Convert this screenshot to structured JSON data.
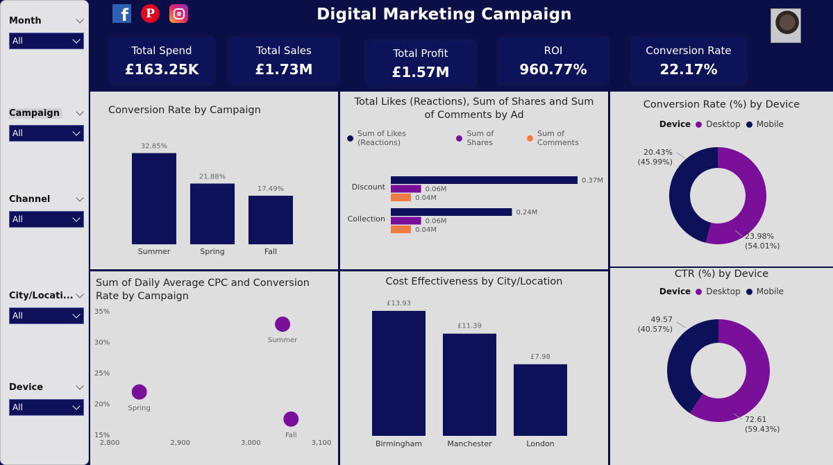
{
  "header": {
    "title": "Digital Marketing Campaign",
    "social": [
      {
        "name": "facebook-icon",
        "glyph": "f"
      },
      {
        "name": "pinterest-icon",
        "glyph": "P"
      },
      {
        "name": "instagram-icon",
        "glyph": ""
      }
    ]
  },
  "kpis": [
    {
      "label": "Total Spend",
      "value": "£163.25K"
    },
    {
      "label": "Total Sales",
      "value": "£1.73M"
    },
    {
      "label": "Total Profit",
      "value": "£1.57M"
    },
    {
      "label": "ROI",
      "value": "960.77%"
    },
    {
      "label": "Conversion Rate",
      "value": "22.17%"
    }
  ],
  "filters": [
    {
      "label": "Month",
      "value": "All"
    },
    {
      "label": "Campaign",
      "value": "All"
    },
    {
      "label": "Channel",
      "value": "All"
    },
    {
      "label": "City/Locati...",
      "value": "All"
    },
    {
      "label": "Device",
      "value": "All"
    }
  ],
  "colors": {
    "navy": "#0c1159",
    "purple": "#7a0f9a",
    "orange": "#f07a46",
    "panel": "#dedede",
    "background": "#0b0f47"
  },
  "chart_data": [
    {
      "type": "bar",
      "title": "Conversion Rate by Campaign",
      "categories": [
        "Summer",
        "Spring",
        "Fall"
      ],
      "values": [
        32.85,
        21.88,
        17.49
      ],
      "labels": [
        "32.85%",
        "21.88%",
        "17.49%"
      ],
      "ylim": [
        0,
        40
      ]
    },
    {
      "type": "bar",
      "orientation": "horizontal",
      "title": "Total Likes (Reactions), Sum of Shares and Sum of Comments by Ad",
      "categories": [
        "Discount",
        "Collection"
      ],
      "series": [
        {
          "name": "Sum of Likes (Reactions)",
          "values": [
            0.37,
            0.24
          ],
          "labels": [
            "0.37M",
            "0.24M"
          ]
        },
        {
          "name": "Sum of Shares",
          "values": [
            0.06,
            0.06
          ],
          "labels": [
            "0.06M",
            "0.06M"
          ]
        },
        {
          "name": "Sum of Comments",
          "values": [
            0.04,
            0.04
          ],
          "labels": [
            "0.04M",
            "0.04M"
          ]
        }
      ],
      "xlim": [
        0,
        0.37
      ]
    },
    {
      "type": "pie",
      "title": "Conversion Rate (%) by Device",
      "legend_title": "Device",
      "slices": [
        {
          "name": "Desktop",
          "value": 23.98,
          "label": "23.98%",
          "pct": "(54.01%)"
        },
        {
          "name": "Mobile",
          "value": 20.43,
          "label": "20.43%",
          "pct": "(45.99%)"
        }
      ]
    },
    {
      "type": "scatter",
      "title": "Sum of Daily Average CPC and Conversion Rate by Campaign",
      "points": [
        {
          "label": "Summer",
          "x": 3045,
          "y": 32.85
        },
        {
          "label": "Spring",
          "x": 2842,
          "y": 21.88
        },
        {
          "label": "Fall",
          "x": 3057,
          "y": 17.49
        }
      ],
      "xlim": [
        2800,
        3100
      ],
      "ylim": [
        15,
        35
      ],
      "xticks": [
        "2,800",
        "2,900",
        "3,000",
        "3,100"
      ],
      "yticks": [
        "35%",
        "30%",
        "25%",
        "20%",
        "15%"
      ]
    },
    {
      "type": "bar",
      "title": "Cost Effectiveness by City/Location",
      "categories": [
        "Birmingham",
        "Manchester",
        "London"
      ],
      "values": [
        13.93,
        11.39,
        7.98
      ],
      "labels": [
        "£13.93",
        "£11.39",
        "£7.98"
      ],
      "ylim": [
        0,
        14
      ]
    },
    {
      "type": "pie",
      "title": "CTR (%) by Device",
      "legend_title": "Device",
      "slices": [
        {
          "name": "Desktop",
          "value": 72.61,
          "label": "72.61",
          "pct": "(59.43%)"
        },
        {
          "name": "Mobile",
          "value": 49.57,
          "label": "49.57",
          "pct": "(40.57%)"
        }
      ]
    }
  ]
}
